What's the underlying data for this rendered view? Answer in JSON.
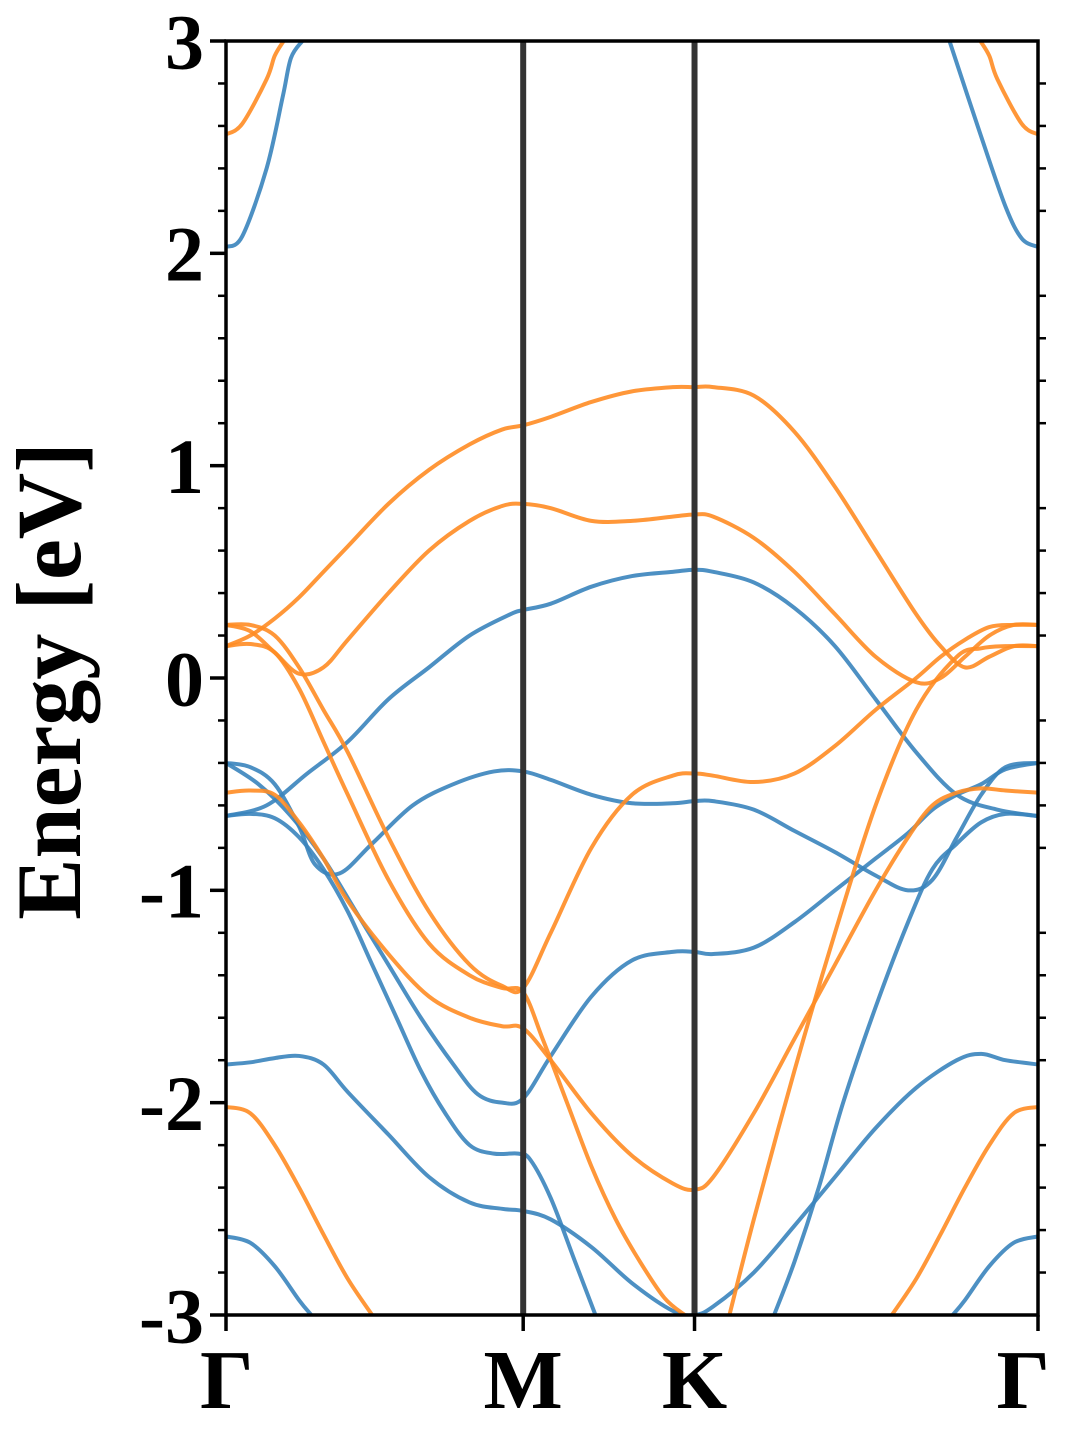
{
  "chart_data": {
    "type": "line",
    "title": "",
    "xlabel": "",
    "ylabel": "Energy [eV]",
    "ylim": [
      -3,
      3
    ],
    "xlim": [
      0,
      1
    ],
    "grid": false,
    "legend": "none",
    "y_ticks": [
      -3,
      -2,
      -1,
      0,
      1,
      2,
      3
    ],
    "y_tick_labels": [
      "-3",
      "-2",
      "-1",
      "0",
      "1",
      "2",
      "3"
    ],
    "y_minor_step": 0.2,
    "high_symmetry_points": [
      {
        "label": "Γ",
        "x": 0.0
      },
      {
        "label": "M",
        "x": 0.366
      },
      {
        "label": "K",
        "x": 0.577
      },
      {
        "label": "Γ",
        "x": 1.0
      }
    ],
    "colors": {
      "spin_up": "#3A84BC",
      "spin_down": "#FF8C23",
      "axis": "#000000",
      "kpath_line": "#333333"
    },
    "series": [
      {
        "color": "#3A84BC",
        "x": [
          0,
          0.02,
          0.05,
          0.07,
          0.08,
          0.094
        ],
        "y": [
          2.03,
          2.08,
          2.4,
          2.74,
          2.92,
          3.0
        ]
      },
      {
        "color": "#3A84BC",
        "x": [
          0.891,
          0.93,
          0.96,
          0.98,
          1.0
        ],
        "y": [
          3.0,
          2.55,
          2.22,
          2.07,
          2.03
        ]
      },
      {
        "color": "#3A84BC",
        "x": [
          0,
          0.05,
          0.1,
          0.15,
          0.2,
          0.25,
          0.3,
          0.35,
          0.366,
          0.4,
          0.45,
          0.5,
          0.55,
          0.577,
          0.6,
          0.65,
          0.7,
          0.75,
          0.8,
          0.85,
          0.9,
          0.95,
          1.0
        ],
        "y": [
          -0.65,
          -0.6,
          -0.45,
          -0.3,
          -0.1,
          0.05,
          0.2,
          0.3,
          0.32,
          0.35,
          0.43,
          0.48,
          0.5,
          0.51,
          0.5,
          0.45,
          0.33,
          0.15,
          -0.1,
          -0.35,
          -0.55,
          -0.62,
          -0.65
        ]
      },
      {
        "color": "#3A84BC",
        "x": [
          0,
          0.03,
          0.06,
          0.09,
          0.11,
          0.14,
          0.18,
          0.23,
          0.28,
          0.33,
          0.366,
          0.4,
          0.45,
          0.5,
          0.55,
          0.577,
          0.6,
          0.65,
          0.7,
          0.75,
          0.8,
          0.84,
          0.87,
          0.9,
          0.93,
          0.96,
          1.0
        ],
        "y": [
          -0.4,
          -0.42,
          -0.5,
          -0.7,
          -0.88,
          -0.92,
          -0.78,
          -0.6,
          -0.5,
          -0.44,
          -0.44,
          -0.48,
          -0.55,
          -0.59,
          -0.59,
          -0.58,
          -0.58,
          -0.62,
          -0.72,
          -0.82,
          -0.93,
          -1.0,
          -0.95,
          -0.75,
          -0.55,
          -0.42,
          -0.4
        ]
      },
      {
        "color": "#3A84BC",
        "x": [
          0,
          0.04,
          0.08,
          0.12,
          0.16,
          0.2,
          0.24,
          0.28,
          0.31,
          0.34,
          0.366,
          0.4,
          0.45,
          0.5,
          0.55,
          0.577,
          0.6,
          0.65,
          0.7,
          0.75,
          0.8,
          0.84,
          0.87,
          0.9,
          0.93,
          0.96,
          1.0
        ],
        "y": [
          -0.4,
          -0.5,
          -0.65,
          -0.85,
          -1.1,
          -1.35,
          -1.6,
          -1.82,
          -1.96,
          -2.0,
          -1.98,
          -1.78,
          -1.5,
          -1.33,
          -1.29,
          -1.29,
          -1.3,
          -1.27,
          -1.15,
          -1.0,
          -0.85,
          -0.73,
          -0.62,
          -0.55,
          -0.5,
          -0.43,
          -0.4
        ]
      },
      {
        "color": "#3A84BC",
        "x": [
          0,
          0.03,
          0.06,
          0.09,
          0.12,
          0.15,
          0.18,
          0.21,
          0.24,
          0.27,
          0.3,
          0.33,
          0.36,
          0.375,
          0.4,
          0.43,
          0.455
        ],
        "y": [
          -0.65,
          -0.64,
          -0.66,
          -0.75,
          -0.9,
          -1.1,
          -1.35,
          -1.6,
          -1.85,
          -2.05,
          -2.2,
          -2.24,
          -2.24,
          -2.27,
          -2.45,
          -2.75,
          -3.0
        ]
      },
      {
        "color": "#3A84BC",
        "x": [
          0.675,
          0.7,
          0.73,
          0.76,
          0.8,
          0.84,
          0.87,
          0.9,
          0.93,
          0.96,
          1.0
        ],
        "y": [
          -3.0,
          -2.75,
          -2.4,
          -2.0,
          -1.55,
          -1.15,
          -0.9,
          -0.78,
          -0.68,
          -0.64,
          -0.65
        ]
      },
      {
        "color": "#3A84BC",
        "x": [
          0,
          0.03,
          0.06,
          0.09,
          0.12,
          0.15,
          0.2,
          0.25,
          0.3,
          0.34,
          0.366,
          0.4,
          0.45,
          0.5,
          0.55,
          0.577,
          0.6,
          0.65,
          0.7,
          0.75,
          0.8,
          0.85,
          0.9,
          0.93,
          0.96,
          1.0
        ],
        "y": [
          -1.82,
          -1.81,
          -1.79,
          -1.78,
          -1.82,
          -1.95,
          -2.15,
          -2.35,
          -2.47,
          -2.5,
          -2.51,
          -2.55,
          -2.68,
          -2.85,
          -2.98,
          -3.0,
          -2.96,
          -2.8,
          -2.58,
          -2.35,
          -2.12,
          -1.93,
          -1.8,
          -1.77,
          -1.8,
          -1.82
        ]
      },
      {
        "color": "#3A84BC",
        "x": [
          0,
          0.03,
          0.06,
          0.09,
          0.105
        ],
        "y": [
          -2.63,
          -2.66,
          -2.77,
          -2.93,
          -3.0
        ]
      },
      {
        "color": "#3A84BC",
        "x": [
          0.895,
          0.91,
          0.94,
          0.97,
          1.0
        ],
        "y": [
          -3.0,
          -2.93,
          -2.77,
          -2.66,
          -2.63
        ]
      },
      {
        "color": "#FF8C23",
        "x": [
          0,
          0.02,
          0.05,
          0.06,
          0.071
        ],
        "y": [
          2.56,
          2.61,
          2.82,
          2.93,
          3.0
        ]
      },
      {
        "color": "#FF8C23",
        "x": [
          0.929,
          0.94,
          0.95,
          0.98,
          1.0
        ],
        "y": [
          3.0,
          2.93,
          2.82,
          2.61,
          2.56
        ]
      },
      {
        "color": "#FF8C23",
        "x": [
          0,
          0.03,
          0.06,
          0.09,
          0.12,
          0.15,
          0.2,
          0.25,
          0.3,
          0.34,
          0.366,
          0.4,
          0.45,
          0.5,
          0.55,
          0.577,
          0.6,
          0.65,
          0.7,
          0.75,
          0.8,
          0.85,
          0.88,
          0.91,
          0.94,
          0.97,
          1.0
        ],
        "y": [
          0.15,
          0.2,
          0.28,
          0.38,
          0.5,
          0.62,
          0.82,
          0.98,
          1.1,
          1.17,
          1.19,
          1.23,
          1.3,
          1.35,
          1.37,
          1.37,
          1.37,
          1.33,
          1.16,
          0.9,
          0.6,
          0.3,
          0.15,
          0.05,
          0.1,
          0.15,
          0.15
        ]
      },
      {
        "color": "#FF8C23",
        "x": [
          0,
          0.03,
          0.06,
          0.09,
          0.12,
          0.15,
          0.2,
          0.25,
          0.3,
          0.34,
          0.366,
          0.4,
          0.45,
          0.5,
          0.55,
          0.577,
          0.6,
          0.65,
          0.7,
          0.75,
          0.8,
          0.85,
          0.88,
          0.91,
          0.94,
          0.97,
          1.0
        ],
        "y": [
          0.25,
          0.22,
          0.12,
          0.02,
          0.05,
          0.18,
          0.4,
          0.6,
          0.74,
          0.81,
          0.82,
          0.8,
          0.74,
          0.74,
          0.76,
          0.77,
          0.76,
          0.66,
          0.5,
          0.3,
          0.1,
          -0.02,
          0.0,
          0.1,
          0.2,
          0.25,
          0.25
        ]
      },
      {
        "color": "#FF8C23",
        "x": [
          0,
          0.03,
          0.06,
          0.09,
          0.12,
          0.15,
          0.2,
          0.25,
          0.3,
          0.34,
          0.366,
          0.4,
          0.45,
          0.5,
          0.55,
          0.577,
          0.6,
          0.65,
          0.7,
          0.75,
          0.8,
          0.85,
          0.88,
          0.91,
          0.94,
          0.97,
          1.0
        ],
        "y": [
          0.25,
          0.25,
          0.2,
          0.05,
          -0.15,
          -0.35,
          -0.75,
          -1.1,
          -1.35,
          -1.45,
          -1.46,
          -1.2,
          -0.8,
          -0.55,
          -0.46,
          -0.45,
          -0.46,
          -0.49,
          -0.45,
          -0.32,
          -0.15,
          0.0,
          0.1,
          0.18,
          0.24,
          0.25,
          0.25
        ]
      },
      {
        "color": "#FF8C23",
        "x": [
          0,
          0.03,
          0.06,
          0.09,
          0.12,
          0.15,
          0.2,
          0.25,
          0.3,
          0.34,
          0.366,
          0.39,
          0.42,
          0.45,
          0.48,
          0.51,
          0.54,
          0.565
        ],
        "y": [
          0.15,
          0.16,
          0.12,
          -0.05,
          -0.3,
          -0.55,
          -0.95,
          -1.25,
          -1.4,
          -1.46,
          -1.48,
          -1.7,
          -2.0,
          -2.3,
          -2.55,
          -2.75,
          -2.92,
          -3.0
        ]
      },
      {
        "color": "#FF8C23",
        "x": [
          0.62,
          0.65,
          0.7,
          0.75,
          0.8,
          0.85,
          0.9,
          0.93,
          0.96,
          1.0
        ],
        "y": [
          -3.0,
          -2.55,
          -1.85,
          -1.2,
          -0.6,
          -0.15,
          0.1,
          0.14,
          0.15,
          0.15
        ]
      },
      {
        "color": "#FF8C23",
        "x": [
          0,
          0.03,
          0.06,
          0.09,
          0.12,
          0.15,
          0.2,
          0.25,
          0.3,
          0.34,
          0.366,
          0.4,
          0.45,
          0.5,
          0.55,
          0.577,
          0.6,
          0.65,
          0.7,
          0.75,
          0.8,
          0.84,
          0.87,
          0.9,
          0.93,
          0.96,
          1.0
        ],
        "y": [
          -0.54,
          -0.53,
          -0.55,
          -0.68,
          -0.85,
          -1.05,
          -1.3,
          -1.5,
          -1.6,
          -1.64,
          -1.65,
          -1.8,
          -2.05,
          -2.25,
          -2.38,
          -2.41,
          -2.35,
          -2.05,
          -1.7,
          -1.35,
          -1.0,
          -0.75,
          -0.6,
          -0.54,
          -0.52,
          -0.53,
          -0.54
        ]
      },
      {
        "color": "#FF8C23",
        "x": [
          0,
          0.03,
          0.06,
          0.09,
          0.12,
          0.15,
          0.18
        ],
        "y": [
          -2.02,
          -2.05,
          -2.2,
          -2.4,
          -2.62,
          -2.83,
          -3.0
        ]
      },
      {
        "color": "#FF8C23",
        "x": [
          0.82,
          0.85,
          0.88,
          0.91,
          0.94,
          0.97,
          1.0
        ],
        "y": [
          -3.0,
          -2.83,
          -2.62,
          -2.4,
          -2.2,
          -2.05,
          -2.02
        ]
      }
    ]
  }
}
